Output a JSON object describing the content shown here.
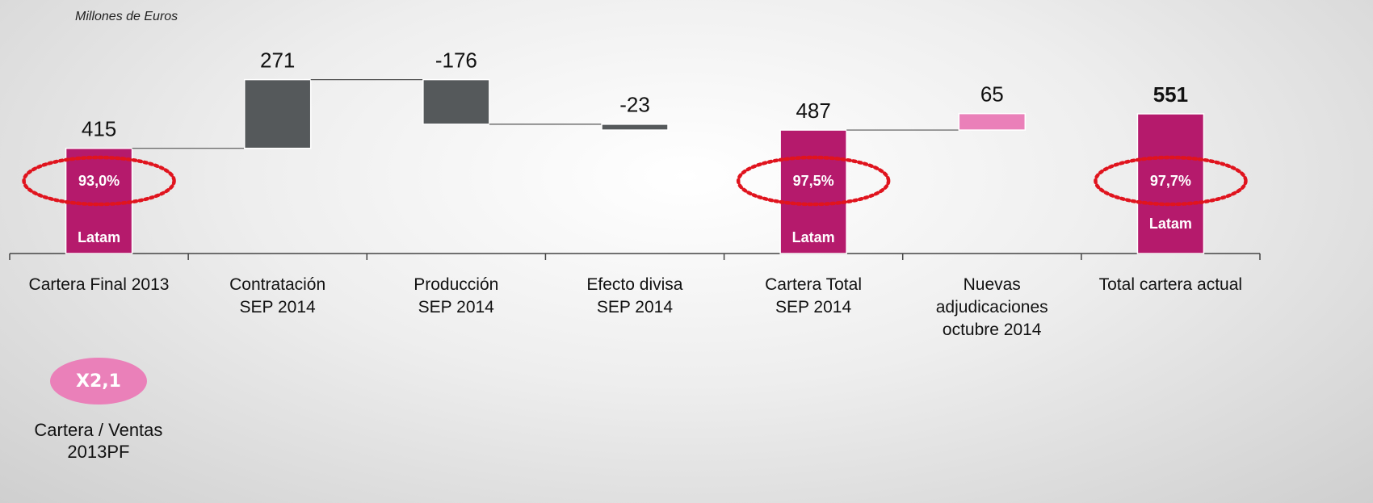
{
  "chart_data": {
    "type": "waterfall",
    "subtitle": "Millones de Euros",
    "categories": [
      "Cartera Final 2013",
      "Contratación\nSEP 2014",
      "Producción\nSEP 2014",
      "Efecto divisa\nSEP 2014",
      "Cartera Total\nSEP 2014",
      "Nuevas\nadjudicaciones\noctubre 2014",
      "Total cartera actual"
    ],
    "values": [
      415,
      271,
      -176,
      -23,
      487,
      65,
      551
    ],
    "bar_kinds": [
      "total",
      "delta",
      "delta",
      "delta",
      "total",
      "delta",
      "total"
    ],
    "colors": [
      "#b51a6c",
      "#55595b",
      "#55595b",
      "#55595b",
      "#b51a6c",
      "#ea80b9",
      "#b51a6c"
    ],
    "bold_labels": [
      false,
      false,
      false,
      false,
      false,
      false,
      true
    ],
    "inner_labels": [
      "93,0%",
      null,
      null,
      null,
      "97,5%",
      null,
      "97,7%"
    ],
    "segment_labels": [
      "Latam",
      null,
      null,
      null,
      "Latam",
      null,
      "Latam"
    ],
    "ylim": [
      0,
      1000
    ],
    "ratio": {
      "label": "X2,1",
      "caption": "Cartera / Ventas\n2013PF",
      "color": "#ea80b9"
    }
  }
}
